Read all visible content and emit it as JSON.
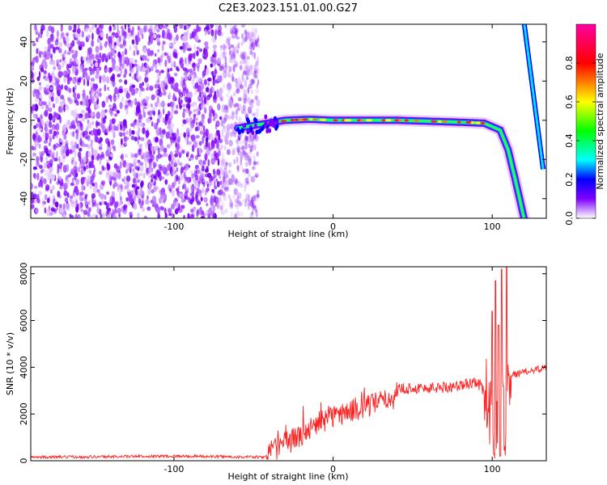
{
  "title": "C2E3.2023.151.01.00.G27",
  "chart_data": [
    {
      "type": "heatmap",
      "xlabel": "Height of straight line (km)",
      "ylabel": "Frequency (Hz)",
      "xlim": [
        -190,
        134
      ],
      "ylim": [
        -50,
        49
      ],
      "xticks": [
        "-100",
        "0",
        "100"
      ],
      "yticks": [
        "-40",
        "-20",
        "0",
        "20",
        "40"
      ],
      "colorbar": {
        "label": "Normalized spectral amplitude",
        "range": [
          0,
          1
        ],
        "ticks": [
          "0.0",
          "0.2",
          "0.4",
          "0.6",
          "0.8"
        ],
        "colors": [
          "#ffffff",
          "#8000ff",
          "#0000ff",
          "#00ffff",
          "#00ff00",
          "#ffff00",
          "#ff0000",
          "#ff00ff"
        ]
      },
      "noise_region_x": [
        -190,
        -50
      ],
      "main_trace": {
        "x": [
          -60,
          -45,
          -30,
          -15,
          0,
          20,
          40,
          60,
          80,
          95,
          105,
          110,
          115,
          120
        ],
        "freq": [
          -4,
          -2,
          0,
          0.5,
          0,
          0,
          0,
          -0.5,
          -1,
          -1.5,
          -5,
          -15,
          -32,
          -50
        ]
      },
      "aliased_trace": {
        "x": [
          120,
          132
        ],
        "freq": [
          50,
          -25
        ]
      }
    },
    {
      "type": "line",
      "xlabel": "Height of straight line (km)",
      "ylabel": "SNR (10 * v/v)",
      "xlim": [
        -190,
        134
      ],
      "ylim": [
        0,
        8300
      ],
      "xticks": [
        "-100",
        "0",
        "100"
      ],
      "yticks": [
        "0",
        "2000",
        "4000",
        "6000",
        "8000"
      ],
      "color": "#ff2020",
      "series": [
        {
          "x": [
            -190,
            -100,
            -42,
            -40,
            -30,
            -20,
            -10,
            0,
            20,
            38,
            42,
            60,
            80,
            90,
            95,
            100,
            103,
            106,
            108,
            110,
            115,
            120,
            134
          ],
          "values": [
            150,
            200,
            150,
            400,
            700,
            1100,
            1600,
            1900,
            2300,
            2700,
            3100,
            3100,
            3200,
            3400,
            3000,
            2000,
            1500,
            2500,
            1800,
            3700,
            3700,
            3800,
            4000
          ],
          "spikes": [
            {
              "x": 102,
              "value": 7700
            },
            {
              "x": 106,
              "value": 8200
            },
            {
              "x": 109,
              "value": 8300
            },
            {
              "x": 100,
              "value": 6400
            },
            {
              "x": 104,
              "value": 5800
            },
            {
              "x": 107,
              "value": 3200
            },
            {
              "x": 101,
              "value": 300
            },
            {
              "x": 105,
              "value": 200
            }
          ]
        }
      ]
    }
  ]
}
